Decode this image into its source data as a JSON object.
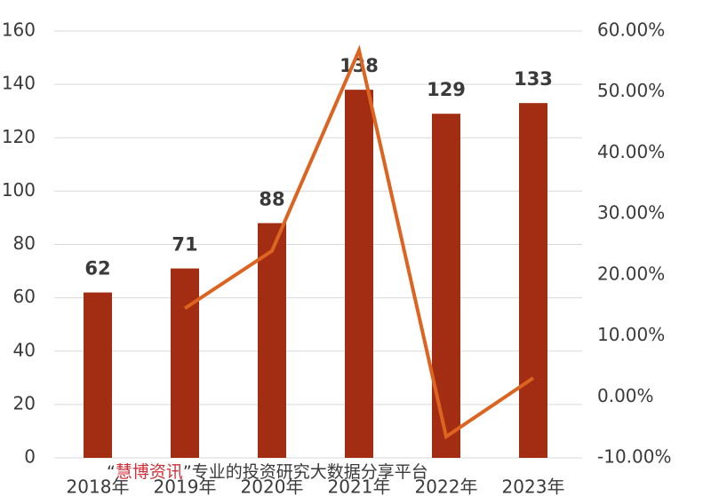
{
  "chart_data": {
    "type": "bar-line",
    "categories": [
      "2018年",
      "2019年",
      "2020年",
      "2021年",
      "2022年",
      "2023年"
    ],
    "series": [
      {
        "type": "bar",
        "color": "#a32d12",
        "values": [
          62,
          71,
          88,
          138,
          129,
          133
        ]
      },
      {
        "type": "line",
        "axis": "y2",
        "color": "#dc6420",
        "values": [
          null,
          14.52,
          23.94,
          56.82,
          -6.52,
          3.1
        ]
      }
    ],
    "ylim": [
      0,
      160
    ],
    "yticks": [
      0,
      20,
      40,
      60,
      80,
      100,
      120,
      140,
      160
    ],
    "y2lim": [
      -10,
      60
    ],
    "y2ticks": [
      {
        "value": -10,
        "label": "-10.00%"
      },
      {
        "value": 0,
        "label": "0.00%"
      },
      {
        "value": 10,
        "label": "10.00%"
      },
      {
        "value": 20,
        "label": "20.00%"
      },
      {
        "value": 30,
        "label": "30.00%"
      },
      {
        "value": 40,
        "label": "40.00%"
      },
      {
        "value": 50,
        "label": "50.00%"
      },
      {
        "value": 60,
        "label": "60.00%"
      }
    ],
    "grid": true
  },
  "watermark": {
    "open": "“",
    "brand": "慧博资讯",
    "rest": "”专业的投资研究大数据分享平台"
  }
}
